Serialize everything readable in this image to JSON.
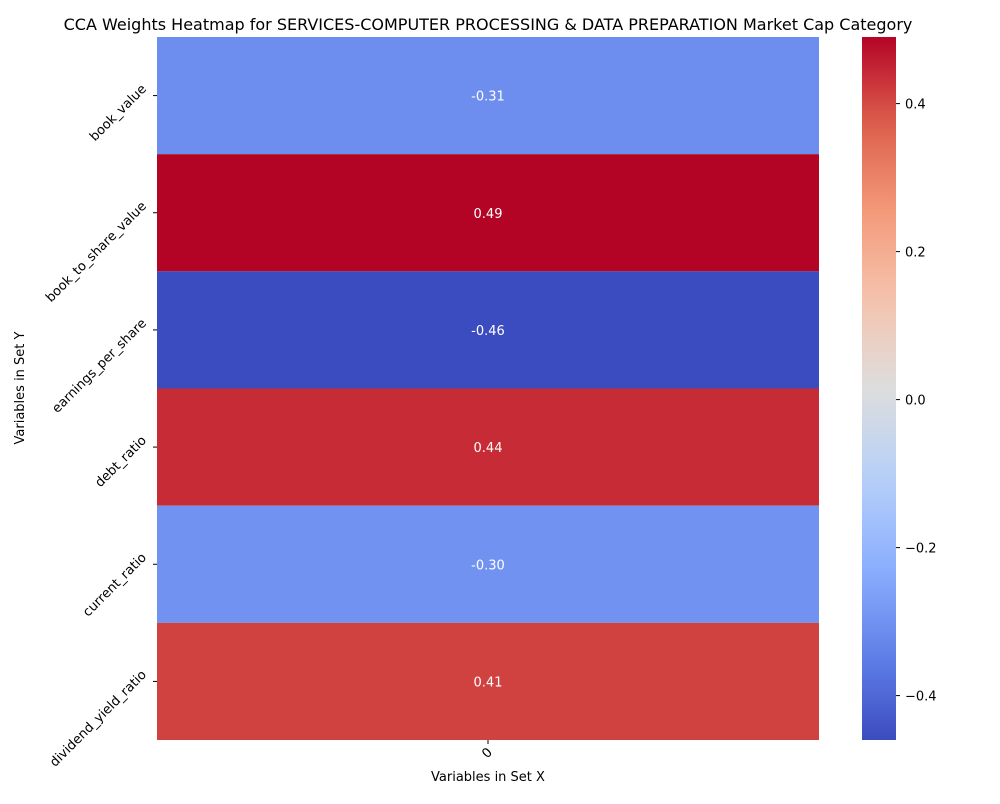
{
  "chart_data": {
    "type": "heatmap",
    "title": "CCA Weights Heatmap for SERVICES-COMPUTER PROCESSING & DATA PREPARATION Market Cap Category",
    "xlabel": "Variables in Set X",
    "ylabel": "Variables in Set Y",
    "x_categories": [
      "0"
    ],
    "y_categories": [
      "book_value",
      "book_to_share_value",
      "earnings_per_share",
      "debt_ratio",
      "current_ratio",
      "dividend_yield_ratio"
    ],
    "values": [
      [
        -0.31
      ],
      [
        0.49
      ],
      [
        -0.46
      ],
      [
        0.44
      ],
      [
        -0.3
      ],
      [
        0.41
      ]
    ],
    "cell_labels": [
      [
        "-0.31"
      ],
      [
        "0.49"
      ],
      [
        "-0.46"
      ],
      [
        "0.44"
      ],
      [
        "-0.30"
      ],
      [
        "0.41"
      ]
    ],
    "colormap": "coolwarm",
    "vmin": -0.46,
    "vmax": 0.49,
    "colorbar_ticks": [
      -0.4,
      -0.2,
      0.0,
      0.2,
      0.4
    ],
    "colorbar_tick_labels": [
      "−0.4",
      "−0.2",
      "0.0",
      "0.2",
      "0.4"
    ],
    "grid": false
  }
}
